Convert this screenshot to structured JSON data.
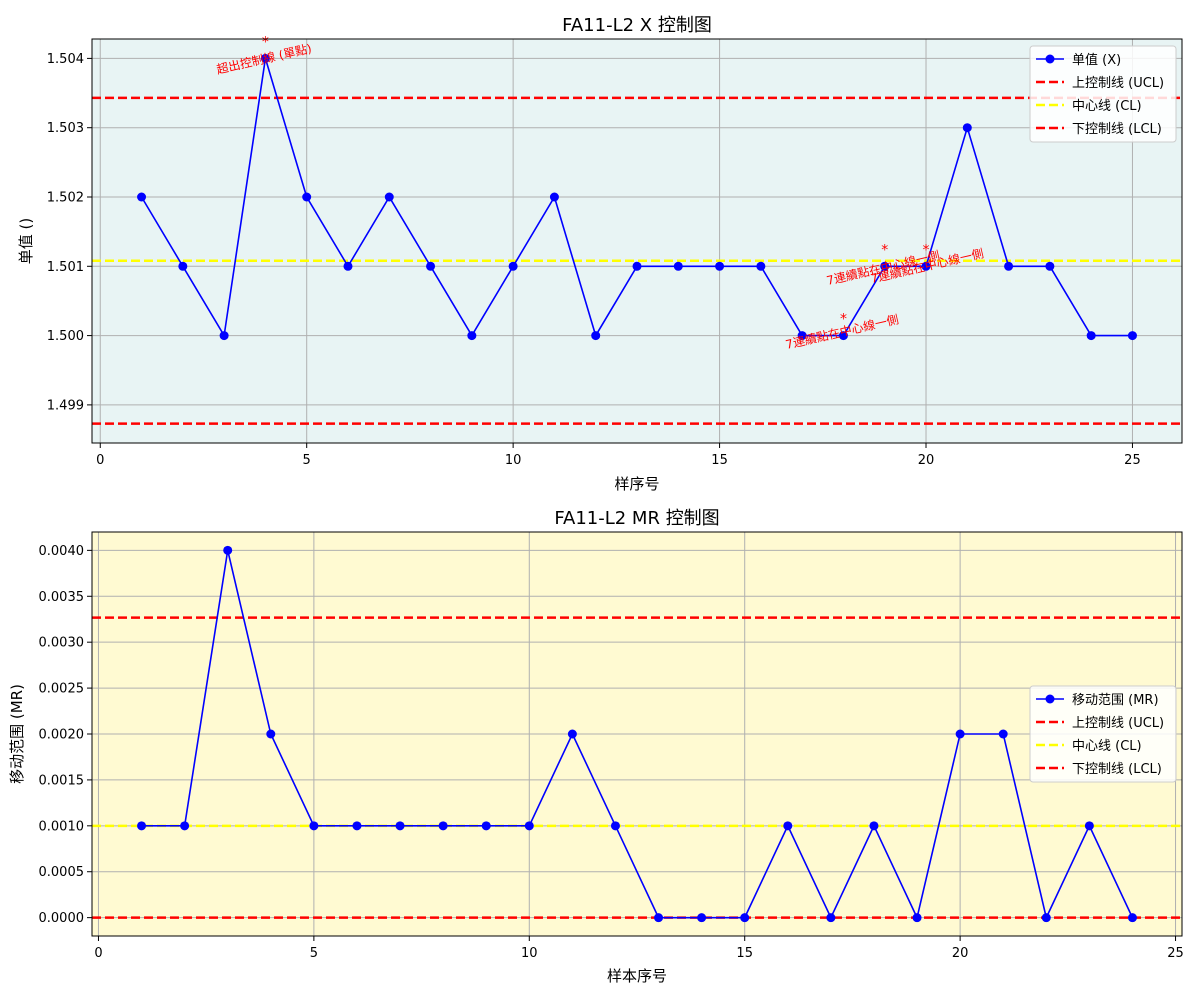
{
  "chart_data": [
    {
      "type": "line",
      "title": "FA11-L2 X 控制图",
      "xlabel": "样序号",
      "ylabel": "单值 ()",
      "xlim": [
        -0.2,
        26.2
      ],
      "ylim": [
        1.49845,
        1.50428
      ],
      "xticks": [
        0,
        5,
        10,
        15,
        20,
        25
      ],
      "xtick_labels": [
        "0",
        "5",
        "10",
        "15",
        "20",
        "25"
      ],
      "yticks": [
        1.499,
        1.5,
        1.501,
        1.502,
        1.503,
        1.504
      ],
      "ytick_labels": [
        "1.499",
        "1.500",
        "1.501",
        "1.502",
        "1.503",
        "1.504"
      ],
      "grid": true,
      "background": "#e8f4f4",
      "legend_position": "top-right",
      "x": [
        1,
        2,
        3,
        4,
        5,
        6,
        7,
        8,
        9,
        10,
        11,
        12,
        13,
        14,
        15,
        16,
        17,
        18,
        19,
        20,
        21,
        22,
        23,
        24,
        25
      ],
      "series": [
        {
          "name": "单值 (X)",
          "style": "line-marker",
          "color": "#0000ff",
          "values": [
            1.502,
            1.501,
            1.5,
            1.504,
            1.502,
            1.501,
            1.502,
            1.501,
            1.5,
            1.501,
            1.502,
            1.5,
            1.501,
            1.501,
            1.501,
            1.501,
            1.5,
            1.5,
            1.501,
            1.501,
            1.503,
            1.501,
            1.501,
            1.5,
            1.5
          ]
        },
        {
          "name": "上控制线 (UCL)",
          "style": "hline",
          "color": "#ff0000",
          "value": 1.50343
        },
        {
          "name": "中心线 (CL)",
          "style": "hline",
          "color": "#ffff00",
          "value": 1.50108
        },
        {
          "name": "下控制线 (LCL)",
          "style": "hline",
          "color": "#ff0000",
          "value": 1.49873
        }
      ],
      "annotations": [
        {
          "x": 4,
          "y": 1.504,
          "marker": "*",
          "text": "超出控制線 (單點)"
        },
        {
          "x": 18,
          "y": 1.5,
          "marker": "*",
          "text": "7連續點在中心線一側"
        },
        {
          "x": 19,
          "y": 1.501,
          "marker": "*",
          "text": "7連續點在中心線一側"
        },
        {
          "x": 20,
          "y": 1.501,
          "marker": "*",
          "text": "7連續點在中心線一側"
        }
      ]
    },
    {
      "type": "line",
      "title": "FA11-L2 MR 控制图",
      "xlabel": "样本序号",
      "ylabel": "移动范围 (MR)",
      "xlim": [
        -0.15,
        25.15
      ],
      "ylim": [
        -0.0002,
        0.0042
      ],
      "xticks": [
        0,
        5,
        10,
        15,
        20,
        25
      ],
      "xtick_labels": [
        "0",
        "5",
        "10",
        "15",
        "20",
        "25"
      ],
      "yticks": [
        0.0,
        0.0005,
        0.001,
        0.0015,
        0.002,
        0.0025,
        0.003,
        0.0035,
        0.004
      ],
      "ytick_labels": [
        "0.0000",
        "0.0005",
        "0.0010",
        "0.0015",
        "0.0020",
        "0.0025",
        "0.0030",
        "0.0035",
        "0.0040"
      ],
      "grid": true,
      "background": "#fffad2",
      "legend_position": "center-right",
      "x": [
        1,
        2,
        3,
        4,
        5,
        6,
        7,
        8,
        9,
        10,
        11,
        12,
        13,
        14,
        15,
        16,
        17,
        18,
        19,
        20,
        21,
        22,
        23,
        24
      ],
      "series": [
        {
          "name": "移动范围 (MR)",
          "style": "line-marker",
          "color": "#0000ff",
          "values": [
            0.001,
            0.001,
            0.004,
            0.002,
            0.001,
            0.001,
            0.001,
            0.001,
            0.001,
            0.001,
            0.002,
            0.001,
            0.0,
            0.0,
            0.0,
            0.001,
            0.0,
            0.001,
            0.0,
            0.002,
            0.002,
            0.0,
            0.001,
            0.0
          ]
        },
        {
          "name": "上控制线 (UCL)",
          "style": "hline",
          "color": "#ff0000",
          "value": 0.003267
        },
        {
          "name": "中心线 (CL)",
          "style": "hline",
          "color": "#ffff00",
          "value": 0.001
        },
        {
          "name": "下控制线 (LCL)",
          "style": "hline",
          "color": "#ff0000",
          "value": 0.0
        }
      ],
      "annotations": []
    }
  ]
}
